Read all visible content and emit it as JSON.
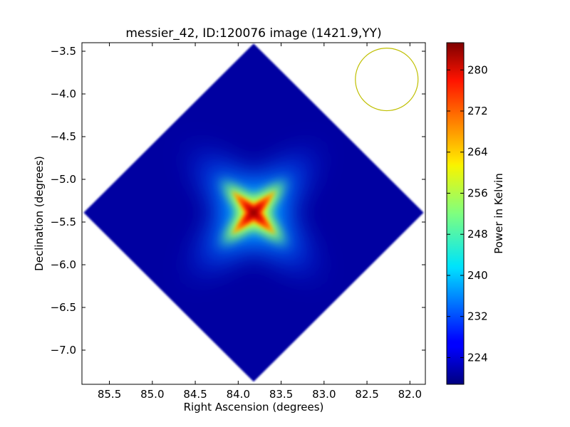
{
  "chart_data": {
    "type": "heatmap",
    "title": "messier_42, ID:120076 image (1421.9,YY)",
    "xlabel": "Right Ascension (degrees)",
    "ylabel": "Declination (degrees)",
    "xlim": [
      85.82,
      81.82
    ],
    "ylim": [
      -7.4,
      -3.4
    ],
    "x_ticks": [
      85.5,
      85.0,
      84.5,
      84.0,
      83.5,
      83.0,
      82.5,
      82.0
    ],
    "x_tick_labels": [
      "85.5",
      "85.0",
      "84.5",
      "84.0",
      "83.5",
      "83.0",
      "82.5",
      "82.0"
    ],
    "y_ticks": [
      -3.5,
      -4.0,
      -4.5,
      -5.0,
      -5.5,
      -6.0,
      -6.5,
      -7.0
    ],
    "y_tick_labels": [
      "−3.5",
      "−4.0",
      "−4.5",
      "−5.0",
      "−5.5",
      "−6.0",
      "−6.5",
      "−7.0"
    ],
    "colormap": "jet",
    "colorbar": {
      "label": "Power in Kelvin",
      "vmin": 218.8,
      "vmax": 285.3,
      "ticks": [
        224,
        232,
        240,
        248,
        256,
        264,
        272,
        280
      ],
      "tick_labels": [
        "224",
        "232",
        "240",
        "248",
        "256",
        "264",
        "272",
        "280"
      ]
    },
    "map": {
      "shape": "diamond",
      "center_ra": 83.82,
      "center_dec": -5.39,
      "half_width_deg": 1.98,
      "background_level": 221,
      "peak": {
        "ra": 83.82,
        "dec": -5.39,
        "value": 284
      },
      "hot_region_half_width_deg": 0.4
    },
    "beam_circle": {
      "ra": 82.27,
      "dec": -3.83,
      "radius_deg": 0.365,
      "color": "#bfbf00"
    },
    "grid": false
  }
}
